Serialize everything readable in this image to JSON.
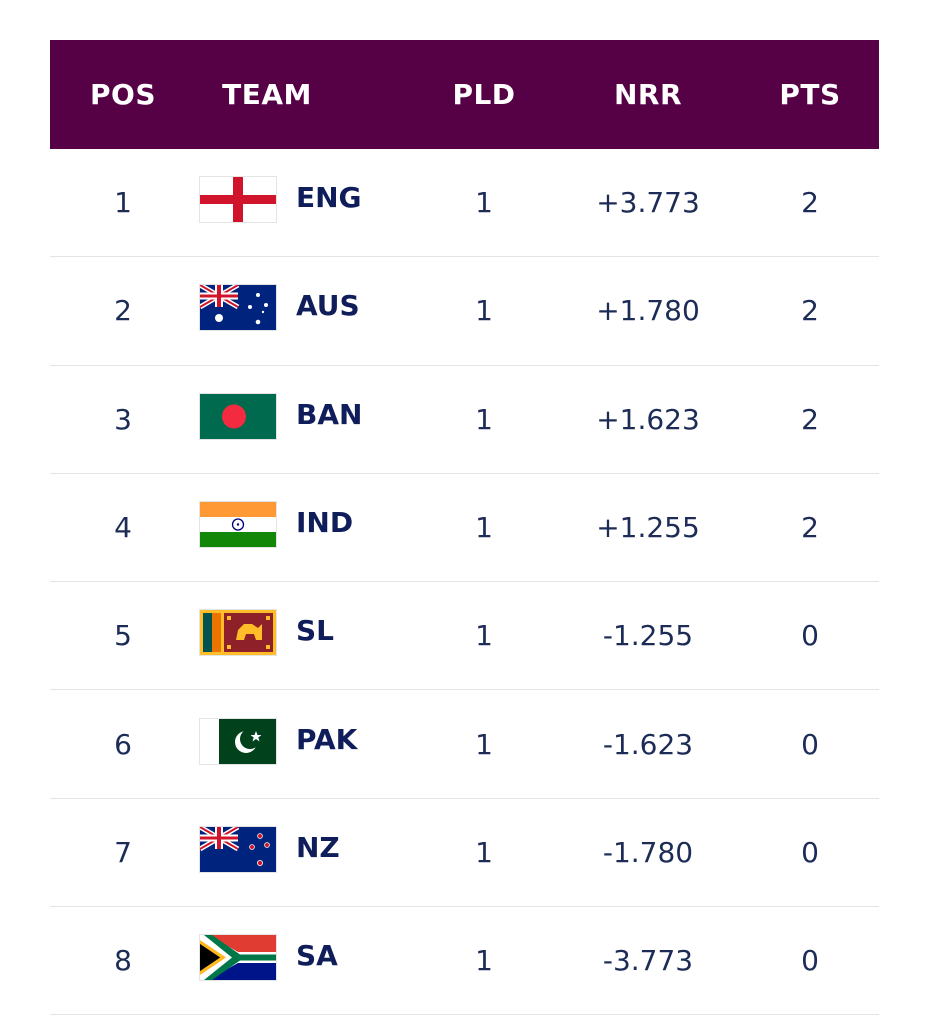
{
  "header": {
    "pos": "POS",
    "team": "TEAM",
    "pld": "PLD",
    "nrr": "NRR",
    "pts": "PTS",
    "background": "#560045"
  },
  "rows": [
    {
      "pos": "1",
      "team": "ENG",
      "flag": "england-flag-icon",
      "pld": "1",
      "nrr": "+3.773",
      "pts": "2"
    },
    {
      "pos": "2",
      "team": "AUS",
      "flag": "australia-flag-icon",
      "pld": "1",
      "nrr": "+1.780",
      "pts": "2"
    },
    {
      "pos": "3",
      "team": "BAN",
      "flag": "bangladesh-flag-icon",
      "pld": "1",
      "nrr": "+1.623",
      "pts": "2"
    },
    {
      "pos": "4",
      "team": "IND",
      "flag": "india-flag-icon",
      "pld": "1",
      "nrr": "+1.255",
      "pts": "2"
    },
    {
      "pos": "5",
      "team": "SL",
      "flag": "sri-lanka-flag-icon",
      "pld": "1",
      "nrr": "-1.255",
      "pts": "0"
    },
    {
      "pos": "6",
      "team": "PAK",
      "flag": "pakistan-flag-icon",
      "pld": "1",
      "nrr": "-1.623",
      "pts": "0"
    },
    {
      "pos": "7",
      "team": "NZ",
      "flag": "new-zealand-flag-icon",
      "pld": "1",
      "nrr": "-1.780",
      "pts": "0"
    },
    {
      "pos": "8",
      "team": "SA",
      "flag": "south-africa-flag-icon",
      "pld": "1",
      "nrr": "-3.773",
      "pts": "0"
    }
  ]
}
